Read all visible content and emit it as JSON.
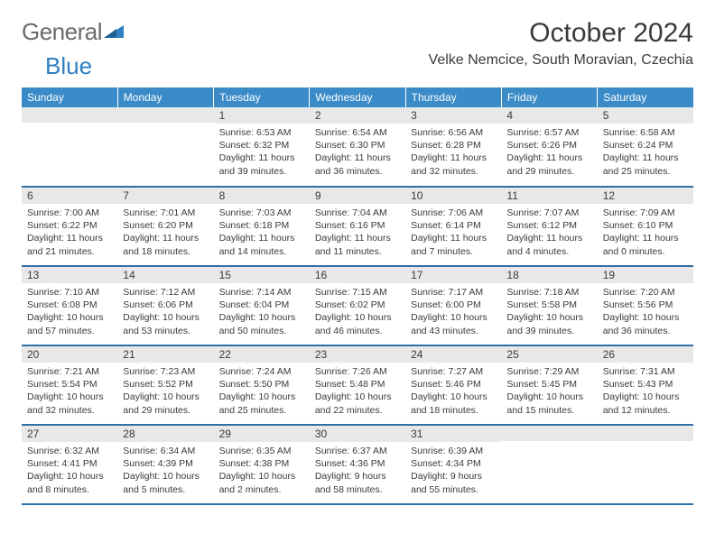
{
  "logo": {
    "part1": "General",
    "part2": "Blue"
  },
  "title": "October 2024",
  "location": "Velke Nemcice, South Moravian, Czechia",
  "colors": {
    "header_bg": "#3b8bc9",
    "header_text": "#ffffff",
    "daynum_bg": "#e8e8e8",
    "row_border": "#2f6fa8",
    "logo_blue": "#2f7fc2",
    "logo_gray": "#6a6a6a",
    "text": "#3a3a3a"
  },
  "weekdays": [
    "Sunday",
    "Monday",
    "Tuesday",
    "Wednesday",
    "Thursday",
    "Friday",
    "Saturday"
  ],
  "weeks": [
    [
      {
        "n": "",
        "sr": "",
        "ss": "",
        "dl": ""
      },
      {
        "n": "",
        "sr": "",
        "ss": "",
        "dl": ""
      },
      {
        "n": "1",
        "sr": "Sunrise: 6:53 AM",
        "ss": "Sunset: 6:32 PM",
        "dl": "Daylight: 11 hours and 39 minutes."
      },
      {
        "n": "2",
        "sr": "Sunrise: 6:54 AM",
        "ss": "Sunset: 6:30 PM",
        "dl": "Daylight: 11 hours and 36 minutes."
      },
      {
        "n": "3",
        "sr": "Sunrise: 6:56 AM",
        "ss": "Sunset: 6:28 PM",
        "dl": "Daylight: 11 hours and 32 minutes."
      },
      {
        "n": "4",
        "sr": "Sunrise: 6:57 AM",
        "ss": "Sunset: 6:26 PM",
        "dl": "Daylight: 11 hours and 29 minutes."
      },
      {
        "n": "5",
        "sr": "Sunrise: 6:58 AM",
        "ss": "Sunset: 6:24 PM",
        "dl": "Daylight: 11 hours and 25 minutes."
      }
    ],
    [
      {
        "n": "6",
        "sr": "Sunrise: 7:00 AM",
        "ss": "Sunset: 6:22 PM",
        "dl": "Daylight: 11 hours and 21 minutes."
      },
      {
        "n": "7",
        "sr": "Sunrise: 7:01 AM",
        "ss": "Sunset: 6:20 PM",
        "dl": "Daylight: 11 hours and 18 minutes."
      },
      {
        "n": "8",
        "sr": "Sunrise: 7:03 AM",
        "ss": "Sunset: 6:18 PM",
        "dl": "Daylight: 11 hours and 14 minutes."
      },
      {
        "n": "9",
        "sr": "Sunrise: 7:04 AM",
        "ss": "Sunset: 6:16 PM",
        "dl": "Daylight: 11 hours and 11 minutes."
      },
      {
        "n": "10",
        "sr": "Sunrise: 7:06 AM",
        "ss": "Sunset: 6:14 PM",
        "dl": "Daylight: 11 hours and 7 minutes."
      },
      {
        "n": "11",
        "sr": "Sunrise: 7:07 AM",
        "ss": "Sunset: 6:12 PM",
        "dl": "Daylight: 11 hours and 4 minutes."
      },
      {
        "n": "12",
        "sr": "Sunrise: 7:09 AM",
        "ss": "Sunset: 6:10 PM",
        "dl": "Daylight: 11 hours and 0 minutes."
      }
    ],
    [
      {
        "n": "13",
        "sr": "Sunrise: 7:10 AM",
        "ss": "Sunset: 6:08 PM",
        "dl": "Daylight: 10 hours and 57 minutes."
      },
      {
        "n": "14",
        "sr": "Sunrise: 7:12 AM",
        "ss": "Sunset: 6:06 PM",
        "dl": "Daylight: 10 hours and 53 minutes."
      },
      {
        "n": "15",
        "sr": "Sunrise: 7:14 AM",
        "ss": "Sunset: 6:04 PM",
        "dl": "Daylight: 10 hours and 50 minutes."
      },
      {
        "n": "16",
        "sr": "Sunrise: 7:15 AM",
        "ss": "Sunset: 6:02 PM",
        "dl": "Daylight: 10 hours and 46 minutes."
      },
      {
        "n": "17",
        "sr": "Sunrise: 7:17 AM",
        "ss": "Sunset: 6:00 PM",
        "dl": "Daylight: 10 hours and 43 minutes."
      },
      {
        "n": "18",
        "sr": "Sunrise: 7:18 AM",
        "ss": "Sunset: 5:58 PM",
        "dl": "Daylight: 10 hours and 39 minutes."
      },
      {
        "n": "19",
        "sr": "Sunrise: 7:20 AM",
        "ss": "Sunset: 5:56 PM",
        "dl": "Daylight: 10 hours and 36 minutes."
      }
    ],
    [
      {
        "n": "20",
        "sr": "Sunrise: 7:21 AM",
        "ss": "Sunset: 5:54 PM",
        "dl": "Daylight: 10 hours and 32 minutes."
      },
      {
        "n": "21",
        "sr": "Sunrise: 7:23 AM",
        "ss": "Sunset: 5:52 PM",
        "dl": "Daylight: 10 hours and 29 minutes."
      },
      {
        "n": "22",
        "sr": "Sunrise: 7:24 AM",
        "ss": "Sunset: 5:50 PM",
        "dl": "Daylight: 10 hours and 25 minutes."
      },
      {
        "n": "23",
        "sr": "Sunrise: 7:26 AM",
        "ss": "Sunset: 5:48 PM",
        "dl": "Daylight: 10 hours and 22 minutes."
      },
      {
        "n": "24",
        "sr": "Sunrise: 7:27 AM",
        "ss": "Sunset: 5:46 PM",
        "dl": "Daylight: 10 hours and 18 minutes."
      },
      {
        "n": "25",
        "sr": "Sunrise: 7:29 AM",
        "ss": "Sunset: 5:45 PM",
        "dl": "Daylight: 10 hours and 15 minutes."
      },
      {
        "n": "26",
        "sr": "Sunrise: 7:31 AM",
        "ss": "Sunset: 5:43 PM",
        "dl": "Daylight: 10 hours and 12 minutes."
      }
    ],
    [
      {
        "n": "27",
        "sr": "Sunrise: 6:32 AM",
        "ss": "Sunset: 4:41 PM",
        "dl": "Daylight: 10 hours and 8 minutes."
      },
      {
        "n": "28",
        "sr": "Sunrise: 6:34 AM",
        "ss": "Sunset: 4:39 PM",
        "dl": "Daylight: 10 hours and 5 minutes."
      },
      {
        "n": "29",
        "sr": "Sunrise: 6:35 AM",
        "ss": "Sunset: 4:38 PM",
        "dl": "Daylight: 10 hours and 2 minutes."
      },
      {
        "n": "30",
        "sr": "Sunrise: 6:37 AM",
        "ss": "Sunset: 4:36 PM",
        "dl": "Daylight: 9 hours and 58 minutes."
      },
      {
        "n": "31",
        "sr": "Sunrise: 6:39 AM",
        "ss": "Sunset: 4:34 PM",
        "dl": "Daylight: 9 hours and 55 minutes."
      },
      {
        "n": "",
        "sr": "",
        "ss": "",
        "dl": ""
      },
      {
        "n": "",
        "sr": "",
        "ss": "",
        "dl": ""
      }
    ]
  ]
}
